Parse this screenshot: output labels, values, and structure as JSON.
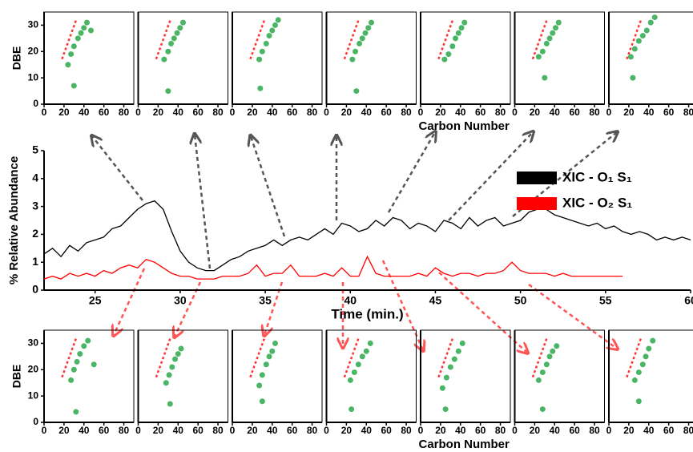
{
  "chart_data": [
    {
      "type": "line",
      "xlabel": "Time (min.)",
      "ylabel": "% Relative Abundance",
      "xlim": [
        22,
        60
      ],
      "xticks": [
        25,
        30,
        35,
        40,
        45,
        50,
        55,
        60
      ],
      "ylim": [
        0,
        5
      ],
      "yticks": [
        0,
        1,
        2,
        3,
        4,
        5
      ],
      "x": [
        22,
        22.5,
        23,
        23.5,
        24,
        24.5,
        25,
        25.5,
        26,
        26.5,
        27,
        27.5,
        28,
        28.5,
        29,
        29.5,
        30,
        30.5,
        31,
        31.5,
        32,
        32.5,
        33,
        33.5,
        34,
        34.5,
        35,
        35.5,
        36,
        36.5,
        37,
        37.5,
        38,
        38.5,
        39,
        39.5,
        40,
        40.5,
        41,
        41.5,
        42,
        42.5,
        43,
        43.5,
        44,
        44.5,
        45,
        45.5,
        46,
        46.5,
        47,
        47.5,
        48,
        48.5,
        49,
        49.5,
        50,
        50.5,
        51,
        51.5,
        52,
        52.5,
        53,
        53.5,
        54,
        54.5,
        55,
        55.5,
        56,
        56.5,
        57,
        57.5,
        58,
        58.5,
        59,
        59.5,
        60
      ],
      "series": [
        {
          "name": "XIC - O₁ S₁",
          "color": "#000000",
          "values": [
            1.3,
            1.5,
            1.2,
            1.6,
            1.4,
            1.7,
            1.8,
            1.9,
            2.2,
            2.3,
            2.6,
            2.9,
            3.1,
            3.2,
            2.9,
            2.1,
            1.4,
            1.0,
            0.8,
            0.7,
            0.7,
            0.9,
            1.1,
            1.2,
            1.4,
            1.5,
            1.6,
            1.8,
            1.6,
            1.8,
            1.9,
            1.8,
            2.0,
            2.2,
            2.0,
            2.4,
            2.3,
            2.1,
            2.2,
            2.5,
            2.3,
            2.6,
            2.5,
            2.2,
            2.4,
            2.3,
            2.1,
            2.5,
            2.4,
            2.2,
            2.6,
            2.3,
            2.5,
            2.6,
            2.3,
            2.4,
            2.5,
            2.8,
            2.9,
            2.9,
            2.7,
            2.6,
            2.5,
            2.4,
            2.3,
            2.4,
            2.2,
            2.3,
            2.1,
            2.0,
            2.1,
            2.0,
            1.8,
            1.9,
            1.8,
            1.9,
            1.8
          ]
        },
        {
          "name": "XIC - O₂ S₁",
          "color": "#ff0000",
          "values": [
            0.4,
            0.5,
            0.4,
            0.6,
            0.5,
            0.6,
            0.5,
            0.7,
            0.6,
            0.8,
            0.9,
            0.8,
            1.1,
            1.0,
            0.8,
            0.6,
            0.5,
            0.5,
            0.4,
            0.4,
            0.4,
            0.5,
            0.5,
            0.5,
            0.6,
            0.9,
            0.5,
            0.6,
            0.6,
            0.9,
            0.5,
            0.5,
            0.5,
            0.6,
            0.5,
            0.8,
            0.5,
            0.5,
            1.2,
            0.6,
            0.5,
            0.5,
            0.5,
            0.5,
            0.6,
            0.5,
            0.8,
            0.6,
            0.5,
            0.6,
            0.6,
            0.5,
            0.6,
            0.6,
            0.7,
            1.0,
            0.7,
            0.6,
            0.6,
            0.6,
            0.5,
            0.6,
            0.5,
            0.5,
            0.5,
            0.5,
            0.5,
            0.5,
            0.5,
            null,
            null,
            null,
            null,
            null,
            null,
            null,
            null
          ]
        }
      ]
    },
    {
      "type": "scatter",
      "ylabel": "DBE",
      "color": "#2aa84a",
      "xlim": [
        0,
        90
      ],
      "ylim": [
        0,
        35
      ],
      "xticks": [
        0,
        20,
        40,
        60,
        80
      ],
      "yticks": [
        0,
        10,
        20,
        30
      ],
      "x": [
        24,
        27,
        30,
        34,
        37,
        40,
        43,
        47,
        30
      ],
      "y": [
        15,
        19,
        22,
        25,
        27,
        29,
        31,
        28,
        7
      ]
    },
    {
      "type": "scatter",
      "color": "#2aa84a",
      "xlim": [
        0,
        90
      ],
      "ylim": [
        0,
        35
      ],
      "xticks": [
        0,
        20,
        40,
        60,
        80
      ],
      "x": [
        26,
        30,
        33,
        36,
        39,
        42,
        45,
        30
      ],
      "y": [
        17,
        20,
        23,
        25,
        27,
        29,
        31,
        5
      ]
    },
    {
      "type": "scatter",
      "color": "#2aa84a",
      "xlim": [
        0,
        90
      ],
      "ylim": [
        0,
        35
      ],
      "xticks": [
        0,
        20,
        40,
        60,
        80
      ],
      "x": [
        27,
        30,
        34,
        37,
        40,
        43,
        46,
        28
      ],
      "y": [
        17,
        20,
        23,
        26,
        28,
        30,
        32,
        6
      ]
    },
    {
      "type": "scatter",
      "xlabel": "Carbon Number",
      "color": "#2aa84a",
      "xlim": [
        0,
        90
      ],
      "ylim": [
        0,
        35
      ],
      "xticks": [
        0,
        20,
        40,
        60,
        80
      ],
      "x": [
        26,
        29,
        33,
        36,
        39,
        42,
        45,
        30
      ],
      "y": [
        17,
        20,
        23,
        25,
        27,
        29,
        31,
        5
      ]
    },
    {
      "type": "scatter",
      "color": "#2aa84a",
      "xlim": [
        0,
        90
      ],
      "ylim": [
        0,
        35
      ],
      "xticks": [
        0,
        20,
        40,
        60,
        80
      ],
      "x": [
        24,
        28,
        32,
        35,
        38,
        41,
        44
      ],
      "y": [
        17,
        19,
        22,
        25,
        27,
        29,
        31
      ]
    },
    {
      "type": "scatter",
      "color": "#2aa84a",
      "xlim": [
        0,
        90
      ],
      "ylim": [
        0,
        35
      ],
      "xticks": [
        0,
        20,
        40,
        60,
        80
      ],
      "x": [
        24,
        28,
        32,
        35,
        38,
        41,
        44,
        30
      ],
      "y": [
        18,
        20,
        23,
        25,
        27,
        29,
        31,
        10
      ]
    },
    {
      "type": "scatter",
      "color": "#2aa84a",
      "xlim": [
        0,
        90
      ],
      "ylim": [
        0,
        35
      ],
      "xticks": [
        0,
        20,
        40,
        60,
        80
      ],
      "x": [
        22,
        26,
        30,
        34,
        38,
        42,
        46,
        24
      ],
      "y": [
        18,
        21,
        24,
        26,
        28,
        31,
        33,
        10
      ]
    },
    {
      "type": "scatter",
      "ylabel": "DBE",
      "color": "#2aa84a",
      "xlim": [
        0,
        90
      ],
      "ylim": [
        0,
        35
      ],
      "xticks": [
        0,
        20,
        40,
        60,
        80
      ],
      "yticks": [
        0,
        10,
        20,
        30
      ],
      "x": [
        27,
        30,
        33,
        36,
        40,
        44,
        50,
        32
      ],
      "y": [
        16,
        20,
        23,
        26,
        29,
        31,
        22,
        4
      ]
    },
    {
      "type": "scatter",
      "color": "#2aa84a",
      "xlim": [
        0,
        90
      ],
      "ylim": [
        0,
        35
      ],
      "xticks": [
        0,
        20,
        40,
        60,
        80
      ],
      "x": [
        28,
        31,
        34,
        37,
        40,
        43,
        32
      ],
      "y": [
        15,
        18,
        21,
        24,
        26,
        28,
        7
      ]
    },
    {
      "type": "scatter",
      "color": "#2aa84a",
      "xlim": [
        0,
        90
      ],
      "ylim": [
        0,
        35
      ],
      "xticks": [
        0,
        20,
        40,
        60,
        80
      ],
      "x": [
        27,
        30,
        34,
        37,
        40,
        43,
        30
      ],
      "y": [
        14,
        18,
        22,
        25,
        27,
        30,
        8
      ]
    },
    {
      "type": "scatter",
      "xlabel": "Carbon Number",
      "color": "#2aa84a",
      "xlim": [
        0,
        90
      ],
      "ylim": [
        0,
        35
      ],
      "xticks": [
        0,
        20,
        40,
        60,
        80
      ],
      "x": [
        24,
        28,
        32,
        36,
        40,
        44,
        25
      ],
      "y": [
        16,
        19,
        22,
        25,
        27,
        30,
        5
      ]
    },
    {
      "type": "scatter",
      "color": "#2aa84a",
      "xlim": [
        0,
        90
      ],
      "ylim": [
        0,
        35
      ],
      "xticks": [
        0,
        20,
        40,
        60,
        80
      ],
      "x": [
        22,
        26,
        30,
        34,
        38,
        42,
        25
      ],
      "y": [
        13,
        17,
        21,
        24,
        27,
        30,
        5
      ]
    },
    {
      "type": "scatter",
      "color": "#2aa84a",
      "xlim": [
        0,
        90
      ],
      "ylim": [
        0,
        35
      ],
      "xticks": [
        0,
        20,
        40,
        60,
        80
      ],
      "x": [
        24,
        28,
        32,
        35,
        38,
        42,
        28
      ],
      "y": [
        16,
        19,
        22,
        25,
        27,
        29,
        5
      ]
    },
    {
      "type": "scatter",
      "color": "#2aa84a",
      "xlim": [
        0,
        90
      ],
      "ylim": [
        0,
        35
      ],
      "xticks": [
        0,
        20,
        40,
        60,
        80
      ],
      "x": [
        26,
        30,
        34,
        37,
        40,
        44,
        30
      ],
      "y": [
        16,
        19,
        22,
        25,
        28,
        31,
        8
      ]
    }
  ]
}
